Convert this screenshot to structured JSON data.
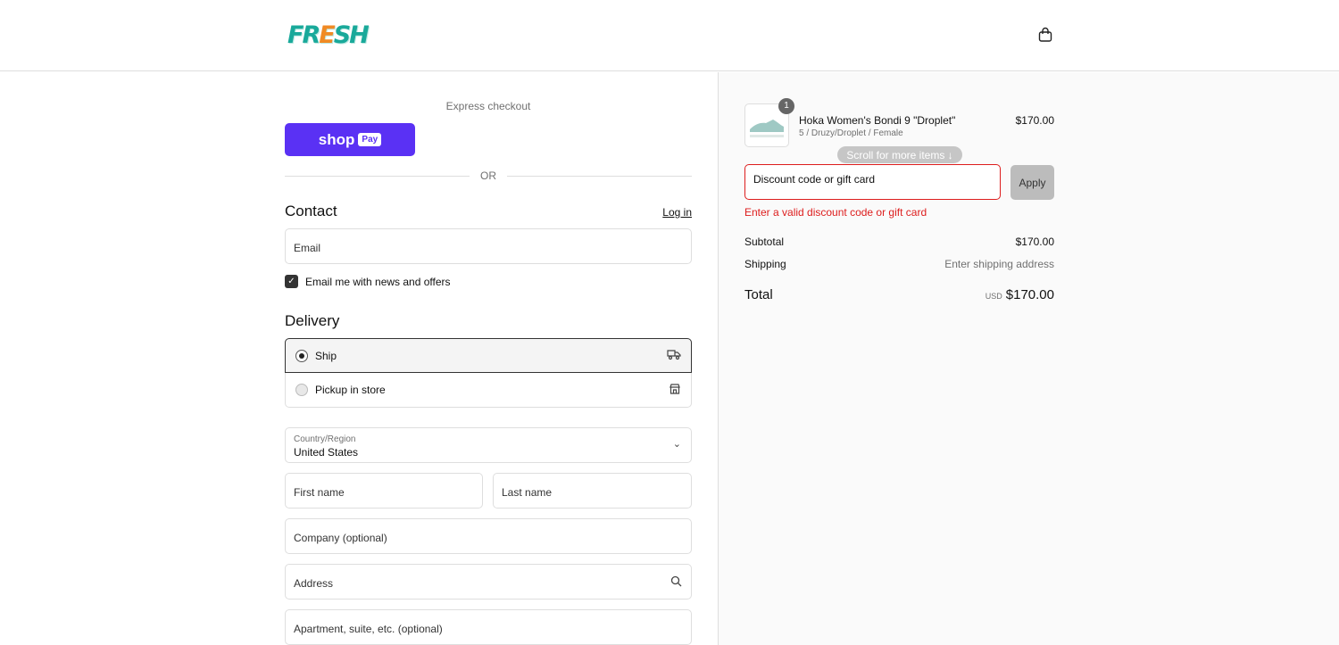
{
  "header": {
    "logo": "FRESH",
    "logo_left": "FR",
    "logo_e": "E",
    "logo_right": "SH",
    "corner": "ↄ"
  },
  "express": {
    "title": "Express checkout",
    "shoppay": "shop",
    "shoppay_badge": "Pay",
    "or": "OR"
  },
  "contact": {
    "title": "Contact",
    "login": "Log in",
    "email_placeholder": "Email",
    "newsletter": "Email me with news and offers",
    "newsletter_checked": true
  },
  "delivery": {
    "title": "Delivery",
    "options": [
      {
        "label": "Ship",
        "selected": true,
        "icon": "truck-icon"
      },
      {
        "label": "Pickup in store",
        "selected": false,
        "icon": "store-icon"
      }
    ],
    "country_label": "Country/Region",
    "country": "United States",
    "first_name": "First name",
    "last_name": "Last name",
    "company": "Company (optional)",
    "address": "Address",
    "apartment": "Apartment, suite, etc. (optional)"
  },
  "summary": {
    "item": {
      "qty": "1",
      "name": "Hoka Women's Bondi 9 \"Droplet\"",
      "variant": "5 / Druzy/Droplet / Female",
      "price": "$170.00"
    },
    "scroll_hint": "Scroll for more items ↓",
    "discount_placeholder": "Discount code or gift card",
    "apply": "Apply",
    "error": "Enter a valid discount code or gift card",
    "subtotal_label": "Subtotal",
    "subtotal": "$170.00",
    "shipping_label": "Shipping",
    "shipping": "Enter shipping address",
    "total_label": "Total",
    "currency": "USD",
    "total": "$170.00"
  },
  "colors": {
    "accent": "#5a31f4",
    "error": "#dd1d1d",
    "brand": "#19a99a"
  }
}
